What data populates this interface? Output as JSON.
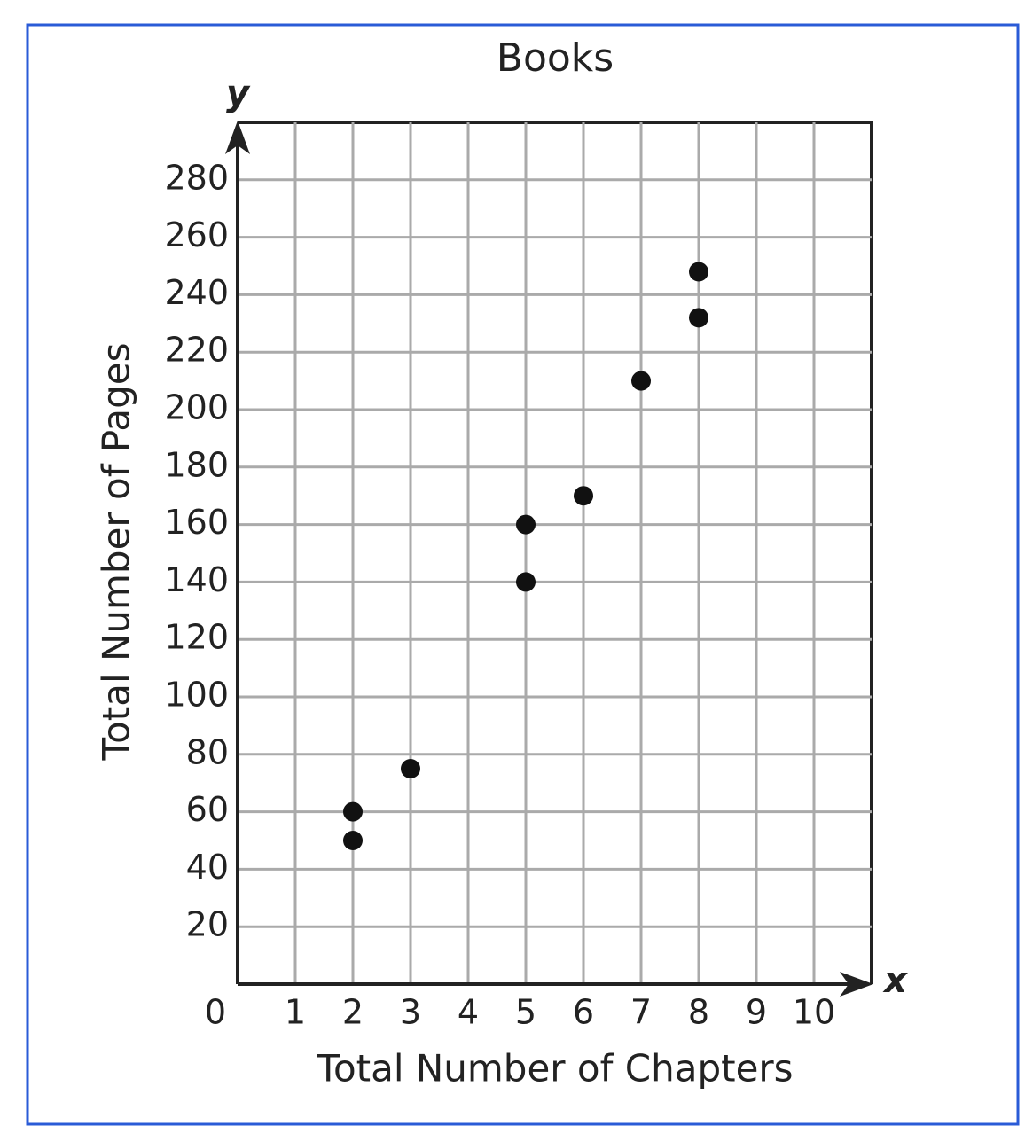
{
  "chart_data": {
    "type": "scatter",
    "title": "Books",
    "x_label": "Total Number of Chapters",
    "y_label": "Total Number of Pages",
    "x_axis_symbol": "x",
    "y_axis_symbol": "y",
    "x": [
      2,
      2,
      3,
      5,
      5,
      6,
      7,
      8,
      8
    ],
    "values": [
      60,
      50,
      75,
      160,
      140,
      170,
      210,
      248,
      232
    ],
    "color": "#111111",
    "xlim": [
      0,
      11
    ],
    "ylim": [
      0,
      300
    ],
    "xticks": [
      0,
      1,
      2,
      3,
      4,
      5,
      6,
      7,
      8,
      9,
      10
    ],
    "yticks": [
      20,
      40,
      60,
      80,
      100,
      120,
      140,
      160,
      180,
      200,
      220,
      240,
      260,
      280
    ],
    "grid": true
  }
}
